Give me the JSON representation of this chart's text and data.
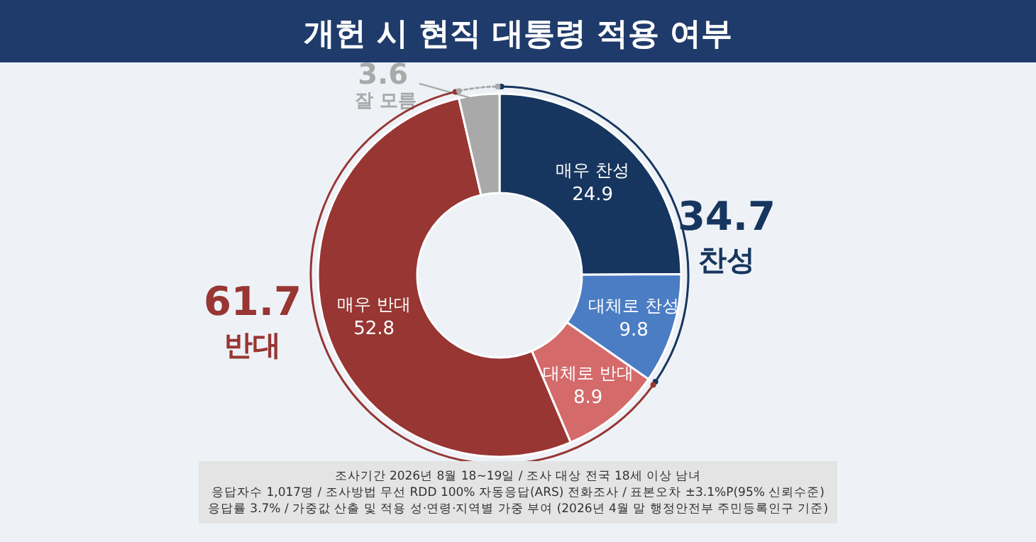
{
  "chart_data": {
    "type": "donut",
    "title": "개헌 시 현직 대통령 적용 여부",
    "categories": [
      "매우 찬성",
      "대체로 찬성",
      "대체로 반대",
      "매우 반대",
      "잘 모름"
    ],
    "values": [
      24.9,
      9.8,
      8.9,
      52.8,
      3.6
    ],
    "colors": [
      "#17365f",
      "#4b7dc4",
      "#d46a6a",
      "#973633",
      "#a9a9a9"
    ],
    "data_labels": true,
    "annotations": [
      "34.7",
      "찬성",
      "61.7",
      "반대",
      "조사기간 2026년 8월 18~19일 / 조사 대상 전국 18세 이상 남녀",
      "응답자수 1,017명 / 조사방법 무선 RDD 100% 자동응답(ARS) 전화조사 / 표본오차 ±3.1%P(95% 신뢰수준)",
      "응답률 3.7% / 가중값 산출 및 적용 성·연령·지역별 가중 부여 (2026년 4월 말 행정안전부 주민등록인구 기준)"
    ]
  }
}
